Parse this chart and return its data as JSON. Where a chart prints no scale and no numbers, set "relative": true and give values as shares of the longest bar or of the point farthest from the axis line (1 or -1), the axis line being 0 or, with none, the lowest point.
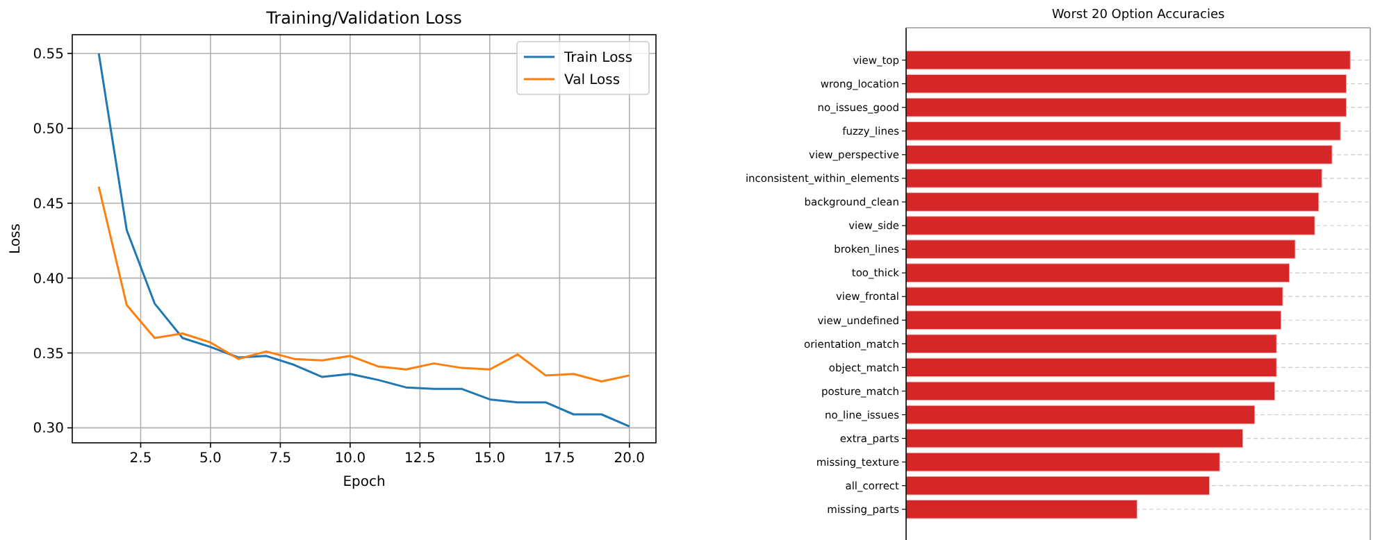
{
  "chart_data": [
    {
      "type": "line",
      "title": "Training/Validation Loss",
      "xlabel": "Epoch",
      "ylabel": "Loss",
      "x": [
        1,
        2,
        3,
        4,
        5,
        6,
        7,
        8,
        9,
        10,
        11,
        12,
        13,
        14,
        15,
        16,
        17,
        18,
        19,
        20
      ],
      "series": [
        {
          "name": "Train Loss",
          "color": "#1f77b4",
          "values": [
            0.55,
            0.432,
            0.383,
            0.36,
            0.354,
            0.347,
            0.348,
            0.342,
            0.334,
            0.336,
            0.332,
            0.327,
            0.326,
            0.326,
            0.319,
            0.317,
            0.317,
            0.309,
            0.309,
            0.301
          ]
        },
        {
          "name": "Val Loss",
          "color": "#ff7f0e",
          "values": [
            0.461,
            0.382,
            0.36,
            0.363,
            0.357,
            0.346,
            0.351,
            0.346,
            0.345,
            0.348,
            0.341,
            0.339,
            0.343,
            0.34,
            0.339,
            0.349,
            0.335,
            0.336,
            0.331,
            0.335
          ]
        }
      ],
      "xlim": [
        0.05,
        20.95
      ],
      "xticks": [
        2.5,
        {
          "value": 5,
          "label": "5.0"
        },
        7.5,
        {
          "value": 10,
          "label": "10.0"
        },
        12.5,
        {
          "value": 15,
          "label": "15.0"
        },
        17.5,
        {
          "value": 20,
          "label": "20.0"
        }
      ],
      "ylim": [
        0.29,
        0.5625
      ],
      "yticks": [
        {
          "value": 0.3,
          "label": "0.30"
        },
        0.35,
        {
          "value": 0.4,
          "label": "0.40"
        },
        0.45,
        {
          "value": 0.5,
          "label": "0.50"
        },
        0.55
      ],
      "grid": true,
      "legend": "top right"
    },
    {
      "type": "bar",
      "orientation": "horizontal",
      "relative": true,
      "title": "Worst 20 Option Accuracies",
      "categories": [
        "view_top",
        "wrong_location",
        "no_issues_good",
        "fuzzy_lines",
        "view_perspective",
        "inconsistent_within_elements",
        "background_clean",
        "view_side",
        "broken_lines",
        "too_thick",
        "view_frontal",
        "view_undefined",
        "orientation_match",
        "object_match",
        "posture_match",
        "no_line_issues",
        "extra_parts",
        "missing_texture",
        "all_correct",
        "missing_parts"
      ],
      "values": [
        1.0,
        0.991,
        0.991,
        0.978,
        0.959,
        0.936,
        0.929,
        0.92,
        0.876,
        0.863,
        0.848,
        0.844,
        0.834,
        0.834,
        0.83,
        0.785,
        0.758,
        0.706,
        0.683,
        0.52
      ],
      "color": "#d62728",
      "grid": "y",
      "tick_labels": "y"
    }
  ]
}
